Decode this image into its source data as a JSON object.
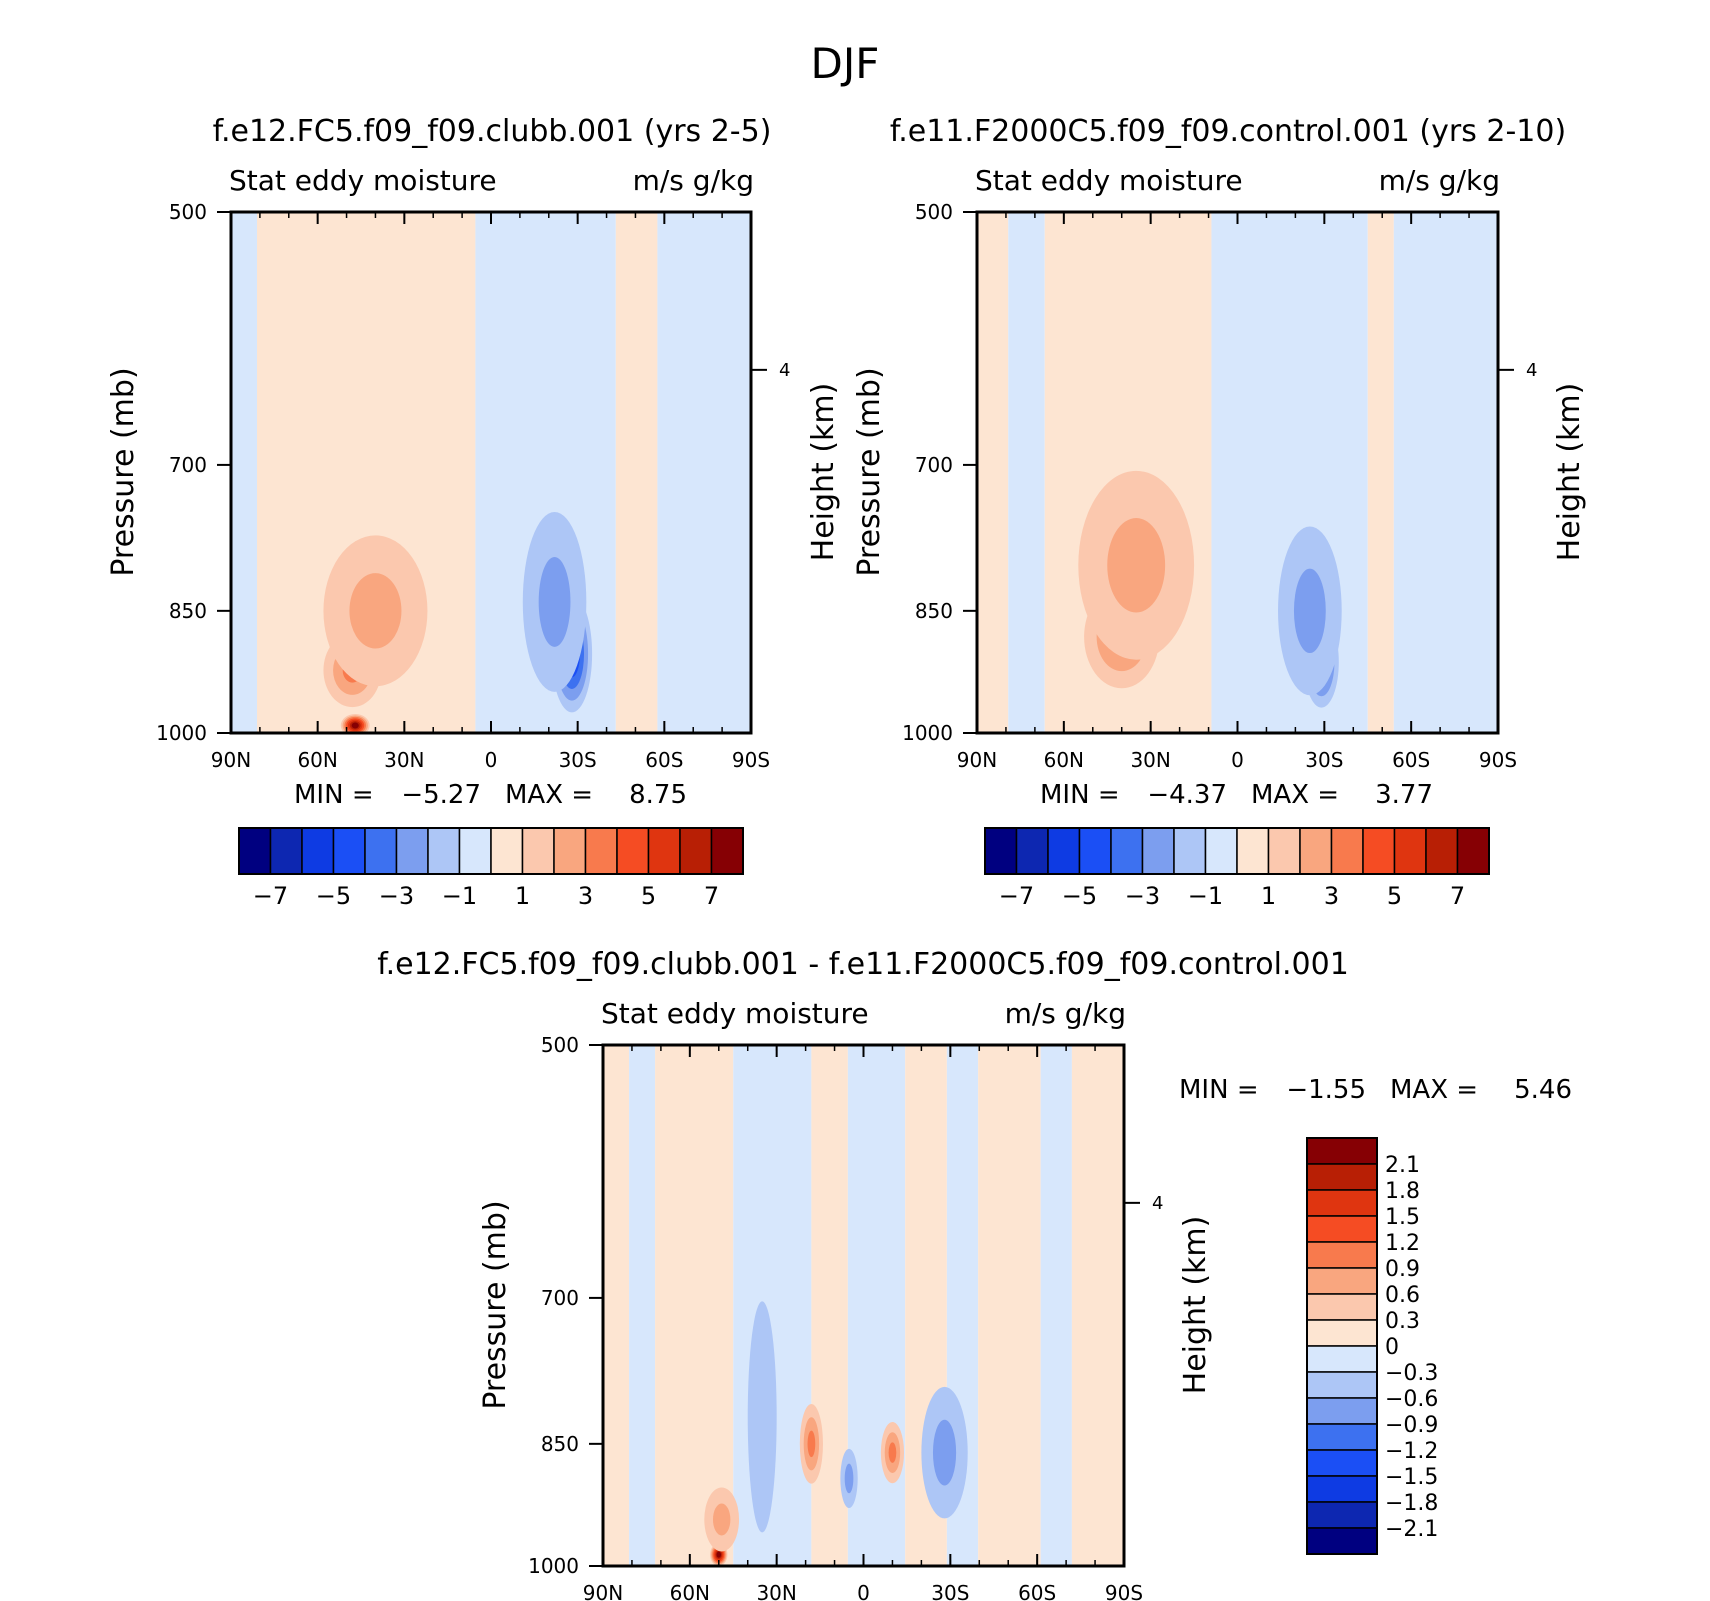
{
  "page_title": "DJF",
  "colors": {
    "neg": [
      "#000080",
      "#0d27b1",
      "#0e3be3",
      "#1b4ff5",
      "#3d71f0",
      "#7c9eef",
      "#adc6f6",
      "#d7e7fc"
    ],
    "pos": [
      "#fde5d2",
      "#fbc8ae",
      "#f9a67f",
      "#f87a4d",
      "#f54c23",
      "#df3510",
      "#b81f05",
      "#860004"
    ]
  },
  "chart_data": [
    {
      "type": "contour",
      "title": "f.e12.FC5.f09_f09.clubb.001 (yrs 2-5)",
      "left_string": "Stat eddy moisture",
      "right_string": "m/s g/kg",
      "ylabel": "Pressure (mb)",
      "ylabel2": "Height (km)",
      "xlim": [
        90,
        -90
      ],
      "ylim": [
        1000,
        500
      ],
      "xticks": [
        "90N",
        "60N",
        "30N",
        "0",
        "30S",
        "60S",
        "90S"
      ],
      "yticks": [
        500,
        700,
        850,
        1000
      ],
      "height_ticks": [
        "4"
      ],
      "min_label": "MIN =",
      "min_value": "-5.27",
      "max_label": "MAX =",
      "max_value": "8.75",
      "colorbar_labels": [
        "-7",
        "-5",
        "-3",
        "-1",
        "1",
        "3",
        "5",
        "7"
      ],
      "features": [
        {
          "lat": -28,
          "p": 900,
          "value": -5.0,
          "wlat": 7,
          "wp": 140
        },
        {
          "lat": -22,
          "p": 840,
          "value": -2.5,
          "wlat": 11,
          "wp": 200
        },
        {
          "lat": 47,
          "p": 990,
          "value": 8.0,
          "wlat": 5,
          "wp": 30
        },
        {
          "lat": 48,
          "p": 920,
          "value": 3.5,
          "wlat": 10,
          "wp": 90
        },
        {
          "lat": 40,
          "p": 850,
          "value": 2.2,
          "wlat": 18,
          "wp": 170
        }
      ]
    },
    {
      "type": "contour",
      "title": "f.e11.F2000C5.f09_f09.control.001 (yrs 2-10)",
      "left_string": "Stat eddy moisture",
      "right_string": "m/s g/kg",
      "ylabel": "Pressure (mb)",
      "ylabel2": "Height (km)",
      "xlim": [
        90,
        -90
      ],
      "ylim": [
        1000,
        500
      ],
      "xticks": [
        "90N",
        "60N",
        "30N",
        "0",
        "30S",
        "60S",
        "90S"
      ],
      "yticks": [
        500,
        700,
        850,
        1000
      ],
      "height_ticks": [
        "4"
      ],
      "min_label": "MIN =",
      "min_value": "-4.37",
      "max_label": "MAX =",
      "max_value": "3.77",
      "colorbar_labels": [
        "-7",
        "-5",
        "-3",
        "-1",
        "1",
        "3",
        "5",
        "7"
      ],
      "features": [
        {
          "lat": -29,
          "p": 910,
          "value": -4.2,
          "wlat": 6,
          "wp": 110
        },
        {
          "lat": -25,
          "p": 850,
          "value": -2.3,
          "wlat": 11,
          "wp": 190
        },
        {
          "lat": 40,
          "p": 880,
          "value": 3.5,
          "wlat": 13,
          "wp": 120
        },
        {
          "lat": 35,
          "p": 800,
          "value": 2.0,
          "wlat": 20,
          "wp": 200
        }
      ]
    },
    {
      "type": "contour",
      "title": "f.e12.FC5.f09_f09.clubb.001 - f.e11.F2000C5.f09_f09.control.001",
      "left_string": "Stat eddy moisture",
      "right_string": "m/s g/kg",
      "ylabel": "Pressure (mb)",
      "ylabel2": "Height (km)",
      "xlim": [
        90,
        -90
      ],
      "ylim": [
        1000,
        500
      ],
      "xticks": [
        "90N",
        "60N",
        "30N",
        "0",
        "30S",
        "60S",
        "90S"
      ],
      "yticks": [
        500,
        700,
        850,
        1000
      ],
      "height_ticks": [
        "4"
      ],
      "min_label": "MIN =",
      "min_value": "-1.55",
      "max_label": "MAX =",
      "max_value": "5.46",
      "colorbar_levels": [
        "2.1",
        "1.8",
        "1.5",
        "1.2",
        "0.9",
        "0.6",
        "0.3",
        "0",
        "-0.3",
        "-0.6",
        "-0.9",
        "-1.2",
        "-1.5",
        "-1.8",
        "-2.1"
      ],
      "features": [
        {
          "lat": 50,
          "p": 985,
          "value": 2.4,
          "wlat": 3,
          "wp": 30
        },
        {
          "lat": 49,
          "p": 940,
          "value": 0.8,
          "wlat": 6,
          "wp": 80
        },
        {
          "lat": -29,
          "p": 880,
          "value": -1.4,
          "wlat": 4,
          "wp": 90
        },
        {
          "lat": -28,
          "p": 860,
          "value": -0.6,
          "wlat": 8,
          "wp": 150
        },
        {
          "lat": -10,
          "p": 860,
          "value": 0.9,
          "wlat": 4,
          "wp": 70
        },
        {
          "lat": 18,
          "p": 850,
          "value": 0.9,
          "wlat": 4,
          "wp": 90
        },
        {
          "lat": 5,
          "p": 890,
          "value": -0.8,
          "wlat": 3,
          "wp": 70
        },
        {
          "lat": 35,
          "p": 820,
          "value": -0.45,
          "wlat": 5,
          "wp": 250
        }
      ]
    }
  ]
}
